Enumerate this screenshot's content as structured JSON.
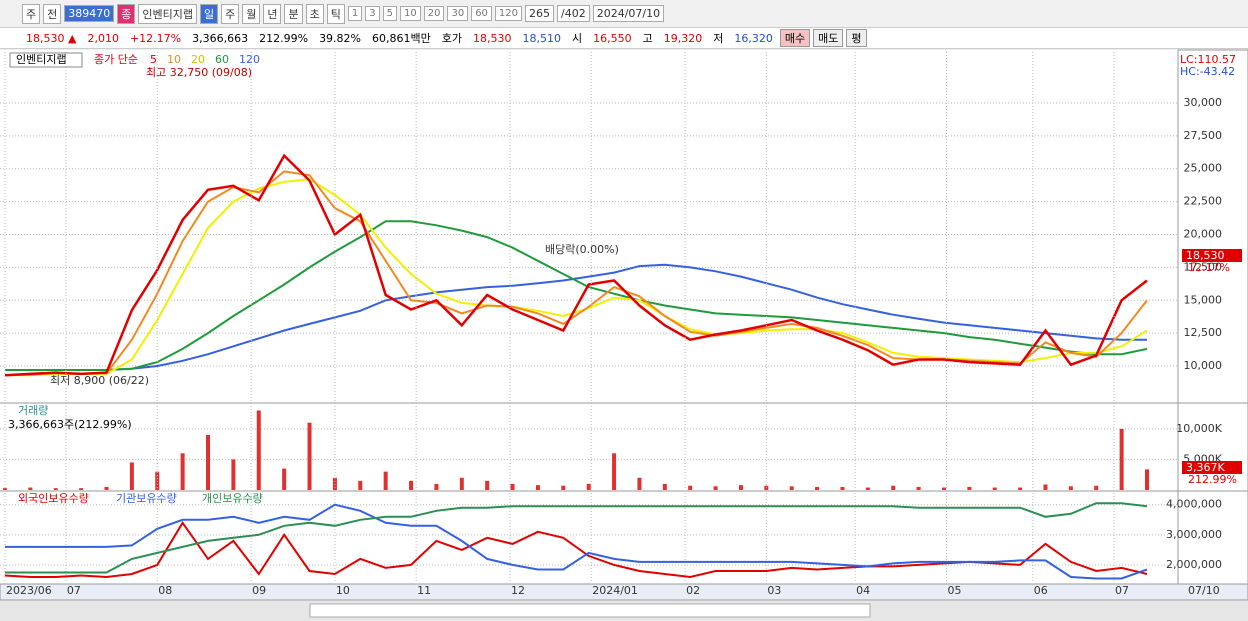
{
  "toolbar": {
    "items": [
      "주",
      "전",
      "389470",
      "종",
      "인벤티지랩",
      "일",
      "주",
      "월",
      "년",
      "분",
      "초",
      "틱",
      "1",
      "3",
      "5",
      "10",
      "20",
      "30",
      "60",
      "120",
      "265",
      "/402",
      "2024/07/10"
    ]
  },
  "quote": {
    "items": [
      "18,530 ▲",
      "2,010",
      "+12.17%",
      "3,366,663",
      "212.99%",
      "39.82%",
      "60,861백만",
      "호가",
      "18,530",
      "18,510",
      "시",
      "16,550",
      "고",
      "19,320",
      "저",
      "16,320",
      "매수",
      "매도",
      "평"
    ]
  },
  "chart_data": [
    {
      "type": "line",
      "title": "인벤티지랩",
      "legend_title": "종가 단순",
      "annotations": [
        "최고 32,750 (09/08)",
        "최저 8,900 (06/22)",
        "배당락(0.00%)"
      ],
      "right_labels": [
        "LC:110.57",
        "HC:-43.42"
      ],
      "last_label": "18,530",
      "change_label": "12.17%",
      "xlim": [
        0,
        45
      ],
      "ylim": [
        7265,
        33875
      ],
      "yticks": [
        {
          "value": 10000,
          "label": "10,000"
        },
        {
          "value": 12500,
          "label": "12,500"
        },
        {
          "value": 15000,
          "label": "15,000"
        },
        {
          "value": 17500,
          "label": "17,500"
        },
        {
          "value": 20000,
          "label": "20,000"
        },
        {
          "value": 22500,
          "label": "22,500"
        },
        {
          "value": 25000,
          "label": "25,000"
        },
        {
          "value": 27500,
          "label": "27,500"
        },
        {
          "value": 30000,
          "label": "30,000"
        }
      ],
      "grid": true,
      "series": [
        {
          "name": "120",
          "color": "#3560e0",
          "values": [
            9700,
            9700,
            9700,
            9700,
            9700,
            9800,
            10000,
            10400,
            10900,
            11500,
            12100,
            12700,
            13200,
            13700,
            14200,
            15000,
            15300,
            15600,
            15800,
            16000,
            16100,
            16300,
            16500,
            16800,
            17100,
            17600,
            17700,
            17500,
            17200,
            16800,
            16300,
            15800,
            15200,
            14700,
            14300,
            13900,
            13600,
            13300,
            13100,
            12900,
            12700,
            12500,
            12300,
            12100,
            12000,
            12000
          ]
        },
        {
          "name": "60",
          "color": "#1f9a3c",
          "values": [
            9700,
            9700,
            9700,
            9700,
            9700,
            9800,
            10300,
            11300,
            12500,
            13800,
            15000,
            16200,
            17500,
            18700,
            19800,
            21000,
            21000,
            20700,
            20300,
            19800,
            19000,
            18000,
            17000,
            16000,
            15500,
            15000,
            14600,
            14300,
            14000,
            13900,
            13800,
            13700,
            13500,
            13300,
            13100,
            12900,
            12700,
            12500,
            12200,
            12000,
            11700,
            11400,
            11100,
            10900,
            10900,
            11300
          ]
        },
        {
          "name": "20",
          "color": "#f0f000",
          "values": [
            9300,
            9300,
            9400,
            9400,
            9400,
            10500,
            13500,
            17000,
            20500,
            22500,
            23500,
            24000,
            24200,
            23000,
            21500,
            19000,
            17000,
            15500,
            14800,
            14600,
            14500,
            14200,
            13800,
            14400,
            15200,
            15000,
            13800,
            12800,
            12400,
            12500,
            12700,
            12800,
            12800,
            12500,
            11800,
            11000,
            10700,
            10600,
            10500,
            10400,
            10300,
            10600,
            11000,
            11000,
            11500,
            12700
          ]
        },
        {
          "name": "10",
          "color": "#f08a20",
          "values": [
            9300,
            9350,
            9450,
            9400,
            9450,
            12000,
            15500,
            19500,
            22500,
            23600,
            23200,
            24800,
            24500,
            22000,
            21000,
            18000,
            15000,
            14800,
            14000,
            14600,
            14500,
            14000,
            13200,
            14500,
            16000,
            15300,
            13800,
            12600,
            12300,
            12600,
            12900,
            13200,
            12900,
            12300,
            11600,
            10600,
            10500,
            10500,
            10400,
            10300,
            10200,
            11800,
            11000,
            10700,
            12500,
            15000
          ]
        },
        {
          "name": "5",
          "color": "#e00000",
          "values": [
            9300,
            9400,
            9500,
            9400,
            9500,
            14250,
            17300,
            21100,
            23400,
            23700,
            22600,
            26000,
            24100,
            20000,
            21500,
            15400,
            14300,
            15000,
            13100,
            15400,
            14300,
            13500,
            12700,
            16200,
            16500,
            14600,
            13100,
            12000,
            12400,
            12700,
            13100,
            13500,
            12700,
            12000,
            11200,
            10100,
            10500,
            10500,
            10300,
            10200,
            10100,
            12700,
            10100,
            10800,
            15000,
            16500
          ]
        }
      ]
    },
    {
      "type": "bar",
      "title": "거래량",
      "subtitle": "3,366,663주(212.99%)",
      "last_label": "3,367K",
      "change_label": "212.99%",
      "color": "#e03030",
      "xlim": [
        0,
        45
      ],
      "ylim": [
        0,
        13900000
      ],
      "yticks": [
        {
          "value": 5000000,
          "label": "5,000K"
        },
        {
          "value": 10000000,
          "label": "10,000K"
        }
      ],
      "grid": true,
      "values": [
        300000,
        400000,
        300000,
        300000,
        500000,
        4500000,
        3000000,
        6000000,
        9000000,
        5000000,
        13000000,
        3500000,
        11000000,
        2000000,
        1500000,
        3000000,
        1500000,
        1000000,
        2000000,
        1500000,
        1000000,
        800000,
        700000,
        1000000,
        6000000,
        2000000,
        1000000,
        700000,
        600000,
        800000,
        700000,
        600000,
        500000,
        500000,
        400000,
        700000,
        500000,
        400000,
        500000,
        400000,
        400000,
        900000,
        600000,
        700000,
        10000000,
        3366663
      ]
    },
    {
      "type": "line",
      "xlim": [
        0,
        45
      ],
      "ylim": [
        1400000,
        4390000
      ],
      "yticks": [
        {
          "value": 2000000,
          "label": "2,000,000"
        },
        {
          "value": 3000000,
          "label": "3,000,000"
        },
        {
          "value": 4000000,
          "label": "4,000,000"
        }
      ],
      "grid": true,
      "xticks": [
        {
          "value": 0,
          "label": "2023/06"
        },
        {
          "value": 2.4,
          "label": "07"
        },
        {
          "value": 6,
          "label": "08"
        },
        {
          "value": 9.7,
          "label": "09"
        },
        {
          "value": 13,
          "label": "10"
        },
        {
          "value": 16.2,
          "label": "11"
        },
        {
          "value": 19.9,
          "label": "12"
        },
        {
          "value": 23.1,
          "label": "2024/01"
        },
        {
          "value": 26.8,
          "label": "02"
        },
        {
          "value": 30,
          "label": "03"
        },
        {
          "value": 33.5,
          "label": "04"
        },
        {
          "value": 37.1,
          "label": "05"
        },
        {
          "value": 40.5,
          "label": "06"
        },
        {
          "value": 43.7,
          "label": "07"
        }
      ],
      "x_end_label": "07/10",
      "series": [
        {
          "name": "외국인보유수량",
          "color": "#e00000",
          "values": [
            1650000,
            1600000,
            1600000,
            1650000,
            1600000,
            1700000,
            2000000,
            3400000,
            2200000,
            2800000,
            1700000,
            3000000,
            1800000,
            1700000,
            2200000,
            1900000,
            2000000,
            2800000,
            2500000,
            2900000,
            2700000,
            3100000,
            2900000,
            2300000,
            2000000,
            1800000,
            1700000,
            1600000,
            1800000,
            1800000,
            1800000,
            1900000,
            1850000,
            1900000,
            1950000,
            1950000,
            2000000,
            2050000,
            2100000,
            2050000,
            2000000,
            2700000,
            2100000,
            1800000,
            1900000,
            1700000
          ]
        },
        {
          "name": "기관보유수량",
          "color": "#3560e0",
          "values": [
            2600000,
            2600000,
            2600000,
            2600000,
            2600000,
            2650000,
            3200000,
            3500000,
            3500000,
            3600000,
            3400000,
            3600000,
            3500000,
            4000000,
            3800000,
            3400000,
            3300000,
            3300000,
            2800000,
            2200000,
            2000000,
            1850000,
            1850000,
            2400000,
            2200000,
            2100000,
            2100000,
            2100000,
            2100000,
            2100000,
            2100000,
            2100000,
            2050000,
            2000000,
            1950000,
            2050000,
            2100000,
            2100000,
            2100000,
            2100000,
            2150000,
            2150000,
            1600000,
            1550000,
            1550000,
            1850000
          ]
        },
        {
          "name": "개인보유수량",
          "color": "#2a8f50",
          "values": [
            1750000,
            1750000,
            1750000,
            1750000,
            1750000,
            2200000,
            2400000,
            2600000,
            2800000,
            2900000,
            3000000,
            3300000,
            3400000,
            3300000,
            3500000,
            3600000,
            3600000,
            3800000,
            3900000,
            3900000,
            3950000,
            3950000,
            3950000,
            3950000,
            3950000,
            3950000,
            3950000,
            3950000,
            3950000,
            3950000,
            3950000,
            3950000,
            3950000,
            3950000,
            3950000,
            3950000,
            3900000,
            3900000,
            3900000,
            3900000,
            3900000,
            3600000,
            3700000,
            4050000,
            4050000,
            3950000
          ]
        }
      ]
    }
  ]
}
